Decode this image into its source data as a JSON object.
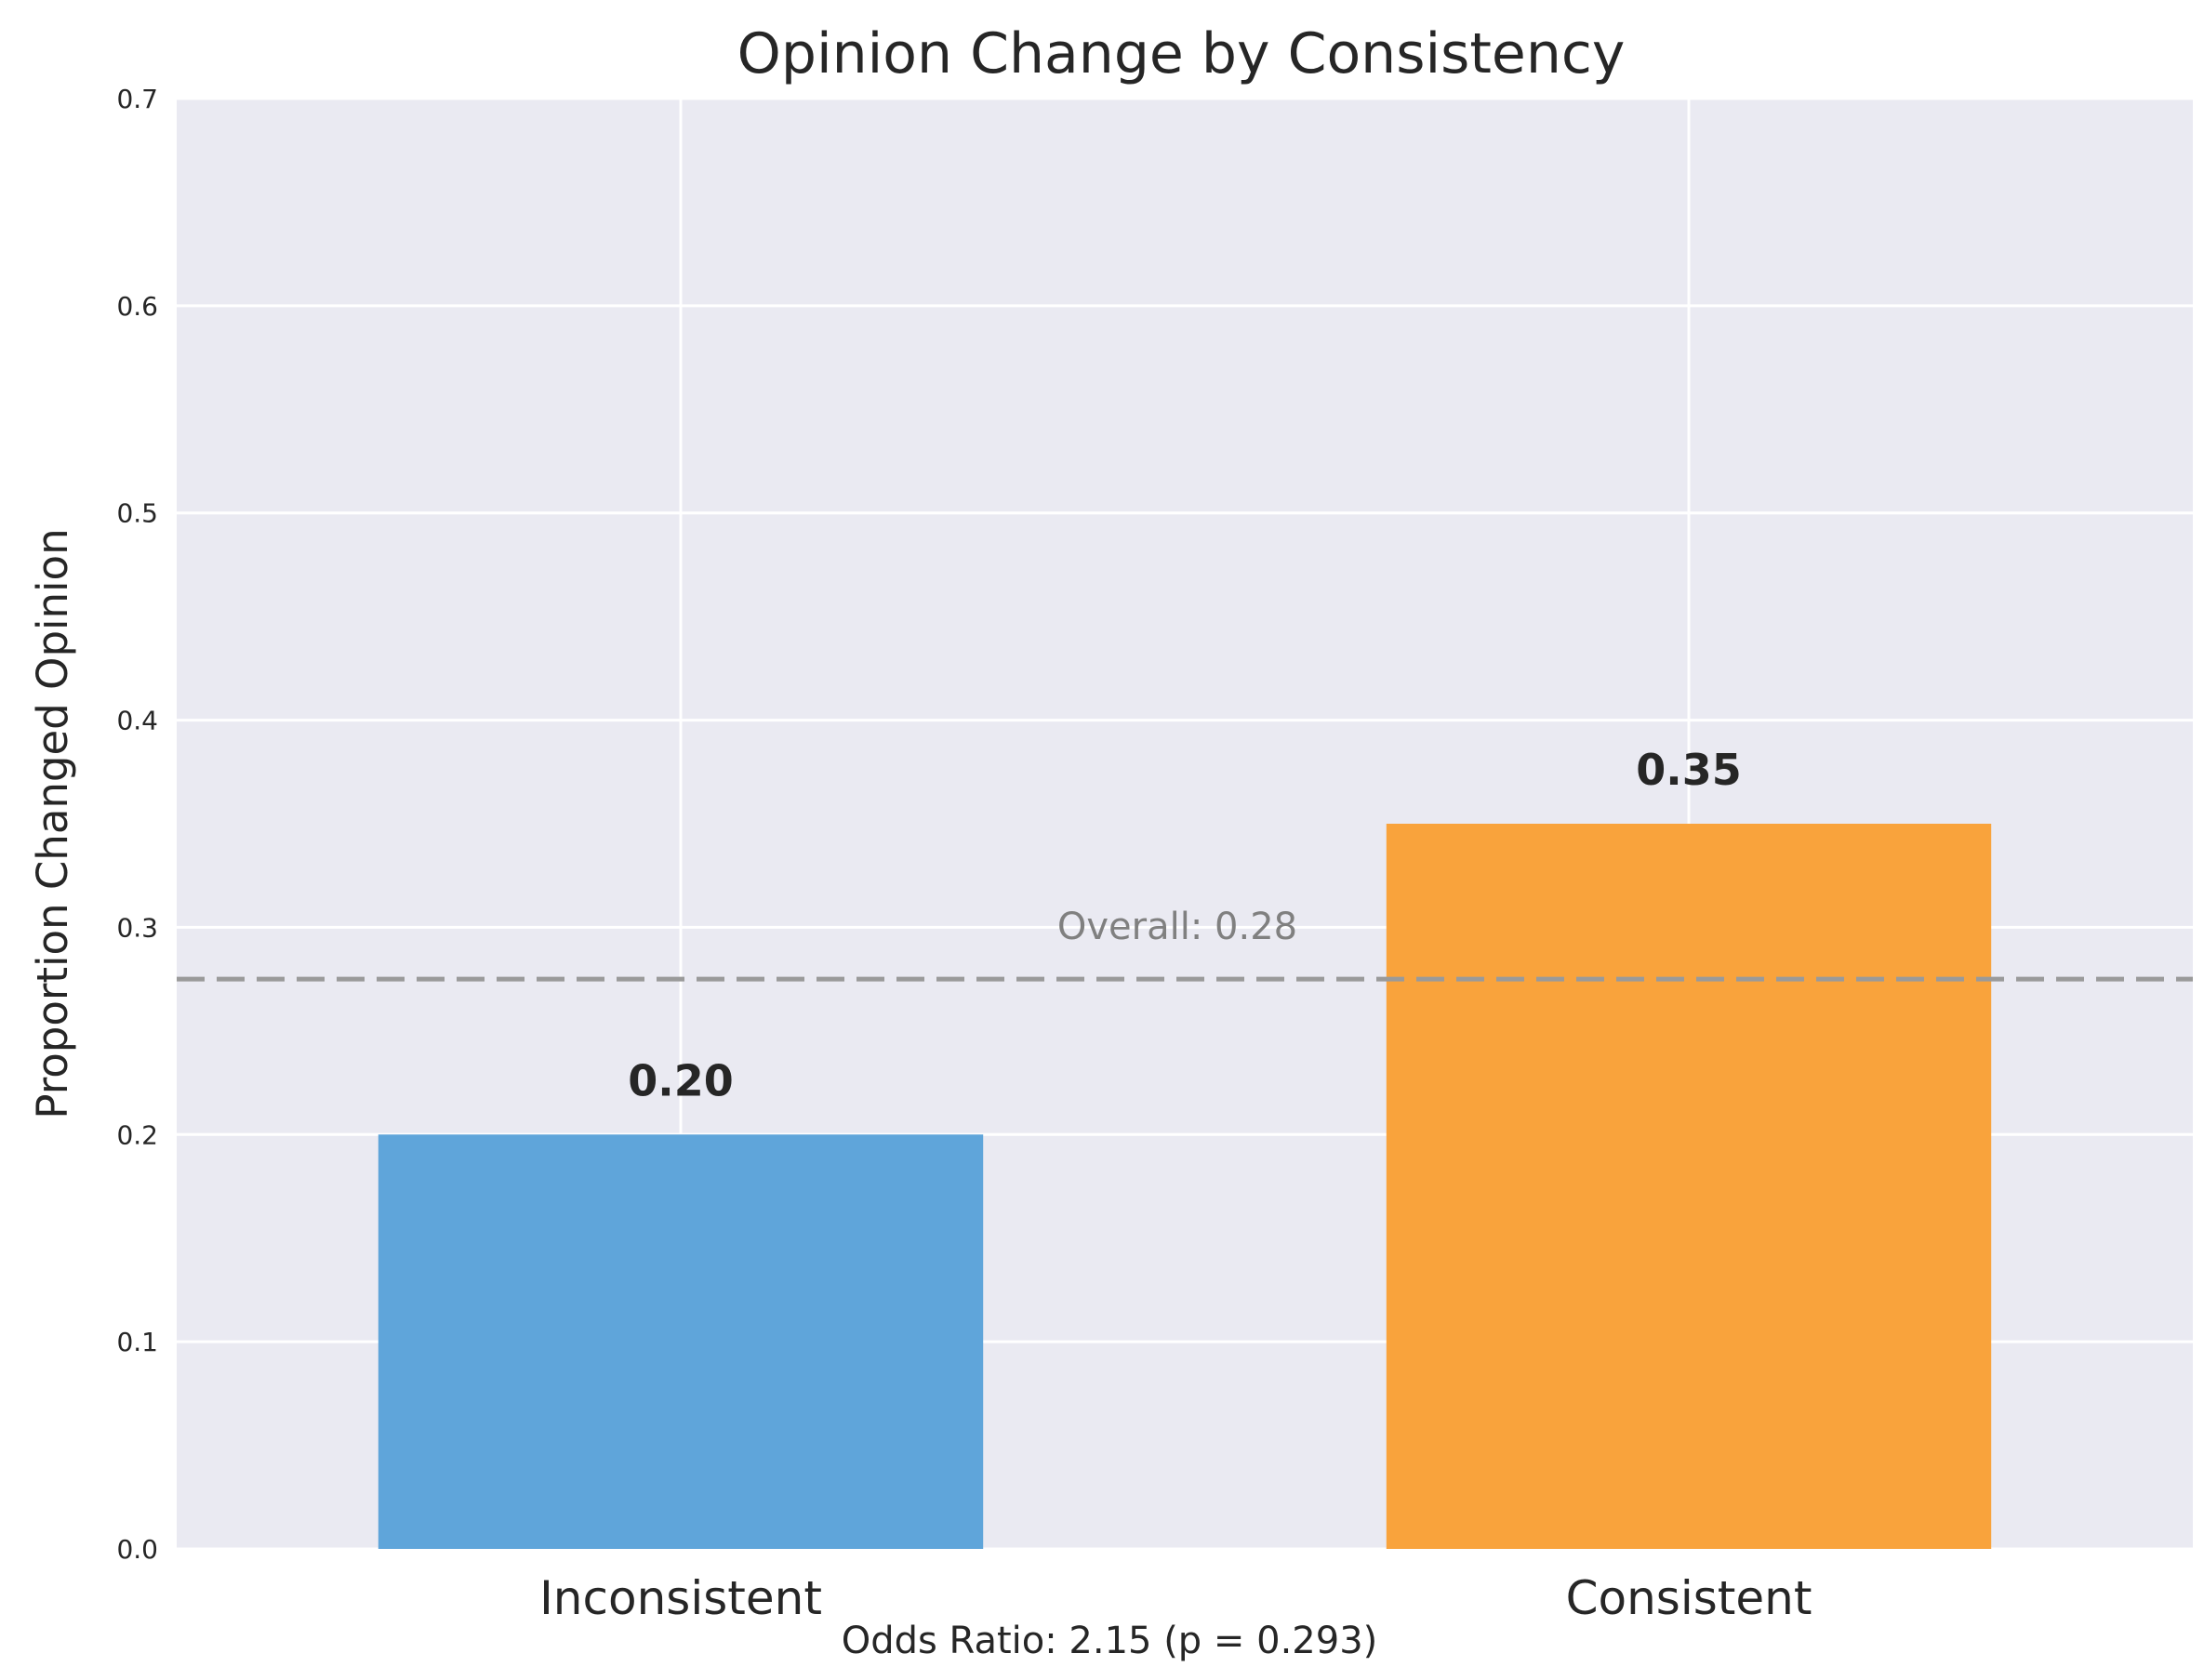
{
  "chart_data": {
    "type": "bar",
    "title": "Opinion Change by Consistency",
    "xlabel": "",
    "ylabel": "Proportion Changed Opinion",
    "categories": [
      "Inconsistent",
      "Consistent"
    ],
    "values": [
      0.2,
      0.35
    ],
    "value_labels": [
      "0.20",
      "0.35"
    ],
    "bar_colors": [
      "#5fa5da",
      "#f9a33c"
    ],
    "ylim": [
      0,
      0.7
    ],
    "yticks": [
      0.0,
      0.1,
      0.2,
      0.3,
      0.4,
      0.5,
      0.6,
      0.7
    ],
    "ytick_labels": [
      "0.0",
      "0.1",
      "0.2",
      "0.3",
      "0.4",
      "0.5",
      "0.6",
      "0.7"
    ],
    "grid": true,
    "background": "#eaeaf2",
    "reference_line": {
      "value": 0.275,
      "label": "Overall: 0.28",
      "style": "dashed",
      "color": "#9a9a9a"
    },
    "footnote": "Odds Ratio: 2.15 (p = 0.293)"
  }
}
